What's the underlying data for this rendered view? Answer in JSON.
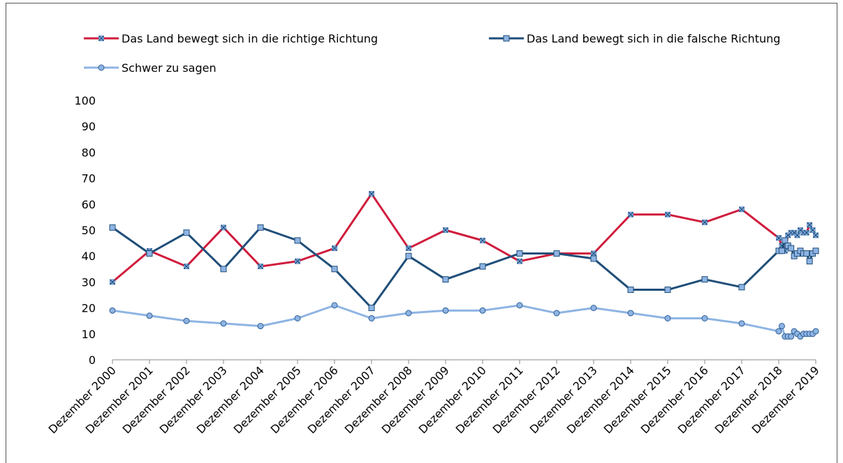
{
  "chart_data": {
    "type": "line",
    "x": [
      2000,
      2001,
      2002,
      2003,
      2004,
      2005,
      2006,
      2007,
      2008,
      2009,
      2010,
      2011,
      2012,
      2013,
      2014,
      2015,
      2016,
      2017,
      2018,
      2018.0833,
      2018.1667,
      2018.25,
      2018.3333,
      2018.4167,
      2018.5,
      2018.5833,
      2018.6667,
      2018.75,
      2018.8333,
      2018.9167,
      2019
    ],
    "series": [
      {
        "name": "Das Land bewegt sich in die richtige Richtung",
        "color": "#d01c3c",
        "marker": "x",
        "values": [
          30,
          42,
          36,
          51,
          36,
          38,
          43,
          64,
          43,
          50,
          46,
          38,
          41,
          41,
          56,
          56,
          53,
          58,
          47,
          44,
          42,
          48,
          49,
          49,
          48,
          50,
          49,
          49,
          52,
          50,
          48
        ]
      },
      {
        "name": "Das Land bewegt sich in die falsche Richtung",
        "color": "#1f4e79",
        "marker": "square",
        "values": [
          51,
          41,
          49,
          35,
          51,
          46,
          35,
          20,
          40,
          31,
          36,
          41,
          41,
          39,
          27,
          27,
          31,
          28,
          42,
          42,
          46,
          44,
          43,
          40,
          41,
          42,
          41,
          41,
          38,
          41,
          42
        ]
      },
      {
        "name": "Schwer zu sagen",
        "color": "#8eb4e3",
        "marker": "circle",
        "values": [
          19,
          17,
          15,
          14,
          13,
          16,
          21,
          16,
          18,
          19,
          19,
          21,
          18,
          20,
          18,
          16,
          16,
          14,
          11,
          13,
          9,
          9,
          9,
          11,
          10,
          9,
          10,
          10,
          10,
          10,
          11
        ]
      }
    ],
    "xlim": [
      2000,
      2019
    ],
    "xticks": [
      {
        "value": 2000,
        "label": "Dezember 2000"
      },
      {
        "value": 2001,
        "label": "Dezember 2001"
      },
      {
        "value": 2002,
        "label": "Dezember 2002"
      },
      {
        "value": 2003,
        "label": "Dezember 2003"
      },
      {
        "value": 2004,
        "label": "Dezember 2004"
      },
      {
        "value": 2005,
        "label": "Dezember 2005"
      },
      {
        "value": 2006,
        "label": "Dezember 2006"
      },
      {
        "value": 2007,
        "label": "Dezember 2007"
      },
      {
        "value": 2008,
        "label": "Dezember 2008"
      },
      {
        "value": 2009,
        "label": "Dezember 2009"
      },
      {
        "value": 2010,
        "label": "Dezember 2010"
      },
      {
        "value": 2011,
        "label": "Dezember 2011"
      },
      {
        "value": 2012,
        "label": "Dezember 2012"
      },
      {
        "value": 2013,
        "label": "Dezember 2013"
      },
      {
        "value": 2014,
        "label": "Dezember 2014"
      },
      {
        "value": 2015,
        "label": "Dezember 2015"
      },
      {
        "value": 2016,
        "label": "Dezember 2016"
      },
      {
        "value": 2017,
        "label": "Dezember 2017"
      },
      {
        "value": 2018,
        "label": "Dezember 2018"
      },
      {
        "value": 2019,
        "label": "Dezember 2019"
      }
    ],
    "ylim": [
      0,
      100
    ],
    "yticks": [
      0,
      10,
      20,
      30,
      40,
      50,
      60,
      70,
      80,
      90,
      100
    ],
    "grid": false,
    "legend": "top"
  }
}
